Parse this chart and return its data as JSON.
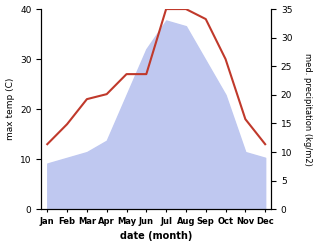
{
  "months": [
    "Jan",
    "Feb",
    "Mar",
    "Apr",
    "May",
    "Jun",
    "Jul",
    "Aug",
    "Sep",
    "Oct",
    "Nov",
    "Dec"
  ],
  "month_indices": [
    0,
    1,
    2,
    3,
    4,
    5,
    6,
    7,
    8,
    9,
    10,
    11
  ],
  "temp_max": [
    13,
    17,
    22,
    23,
    27,
    27,
    40,
    40,
    38,
    30,
    18,
    13
  ],
  "precipitation": [
    8,
    9,
    10,
    12,
    20,
    28,
    33,
    32,
    26,
    20,
    10,
    9
  ],
  "temp_color": "#c0392b",
  "precip_fill_color": "#bfc8f0",
  "temp_ylim": [
    0,
    40
  ],
  "precip_ylim": [
    0,
    35
  ],
  "temp_yticks": [
    0,
    10,
    20,
    30,
    40
  ],
  "precip_yticks": [
    0,
    5,
    10,
    15,
    20,
    25,
    30,
    35
  ],
  "ylabel_left": "max temp (C)",
  "ylabel_right": "med. precipitation (kg/m2)",
  "xlabel": "date (month)",
  "fig_width": 3.18,
  "fig_height": 2.47,
  "dpi": 100
}
